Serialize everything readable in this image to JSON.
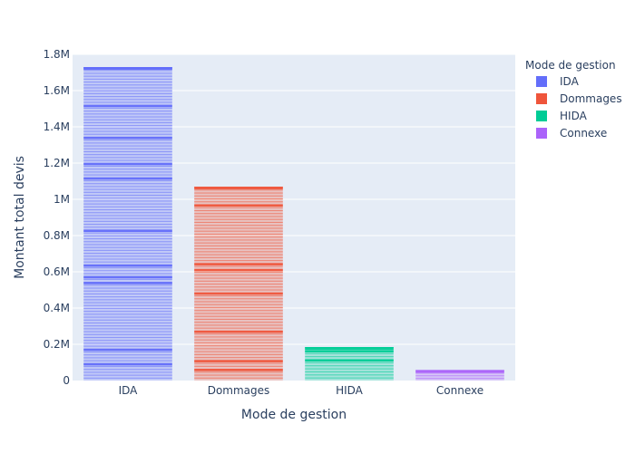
{
  "chart_data": {
    "type": "bar",
    "title": "",
    "xlabel": "Mode de gestion",
    "ylabel": "Montant total devis",
    "categories": [
      "IDA",
      "Dommages",
      "HIDA",
      "Connexe"
    ],
    "values": [
      1730000,
      1070000,
      185000,
      58000
    ],
    "colors": [
      "#636efa",
      "#ef553b",
      "#00cc96",
      "#ab63fa"
    ],
    "ylim": [
      0,
      1800000
    ],
    "yticks": [
      0,
      200000,
      400000,
      600000,
      800000,
      1000000,
      1200000,
      1400000,
      1600000,
      1800000
    ],
    "ytick_labels": [
      "0",
      "0.2M",
      "0.4M",
      "0.6M",
      "0.8M",
      "1M",
      "1.2M",
      "1.4M",
      "1.6M",
      "1.8M"
    ],
    "grid": true,
    "legend": {
      "title": "Mode de gestion",
      "position": "top-right",
      "entries": [
        "IDA",
        "Dommages",
        "HIDA",
        "Connexe"
      ]
    }
  }
}
